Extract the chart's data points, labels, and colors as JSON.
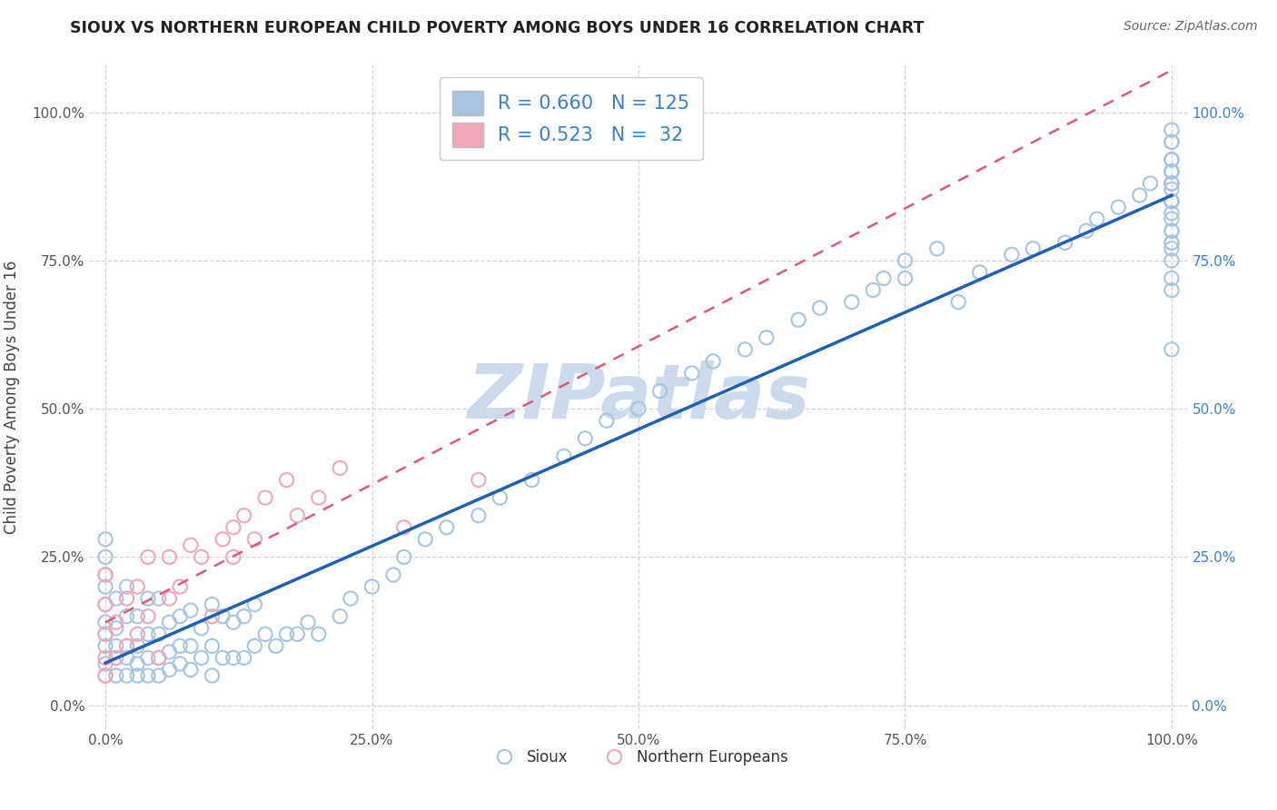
{
  "title": "SIOUX VS NORTHERN EUROPEAN CHILD POVERTY AMONG BOYS UNDER 16 CORRELATION CHART",
  "source": "Source: ZipAtlas.com",
  "ylabel": "Child Poverty Among Boys Under 16",
  "sioux_R": 0.66,
  "sioux_N": 125,
  "ne_R": 0.523,
  "ne_N": 32,
  "sioux_color": "#a8c4e0",
  "ne_color": "#f0a8b8",
  "sioux_line_color": "#2060b0",
  "ne_line_color": "#e05878",
  "watermark_color": "#ccdaec",
  "title_color": "#222222",
  "source_color": "#666666",
  "label_color_right": "#3a7fd5",
  "tick_color": "#555555",
  "grid_color": "#cccccc",
  "background": "#ffffff",
  "xticks": [
    0.0,
    0.25,
    0.5,
    0.75,
    1.0
  ],
  "yticks": [
    0.0,
    0.25,
    0.5,
    0.75,
    1.0
  ],
  "xlim": [
    -0.015,
    1.015
  ],
  "ylim": [
    -0.04,
    1.08
  ],
  "sioux_x": [
    0.0,
    0.0,
    0.0,
    0.0,
    0.0,
    0.0,
    0.0,
    0.0,
    0.0,
    0.0,
    0.01,
    0.01,
    0.01,
    0.01,
    0.01,
    0.02,
    0.02,
    0.02,
    0.02,
    0.02,
    0.03,
    0.03,
    0.03,
    0.03,
    0.04,
    0.04,
    0.04,
    0.04,
    0.05,
    0.05,
    0.05,
    0.05,
    0.06,
    0.06,
    0.06,
    0.07,
    0.07,
    0.07,
    0.08,
    0.08,
    0.08,
    0.09,
    0.09,
    0.1,
    0.1,
    0.1,
    0.11,
    0.11,
    0.12,
    0.12,
    0.13,
    0.13,
    0.14,
    0.14,
    0.15,
    0.16,
    0.17,
    0.18,
    0.19,
    0.2,
    0.22,
    0.23,
    0.25,
    0.27,
    0.28,
    0.3,
    0.32,
    0.35,
    0.37,
    0.4,
    0.43,
    0.45,
    0.47,
    0.5,
    0.52,
    0.55,
    0.57,
    0.6,
    0.62,
    0.65,
    0.67,
    0.7,
    0.72,
    0.73,
    0.75,
    0.75,
    0.78,
    0.8,
    0.82,
    0.85,
    0.87,
    0.9,
    0.92,
    0.93,
    0.95,
    0.97,
    0.98,
    1.0,
    1.0,
    1.0,
    1.0,
    1.0,
    1.0,
    1.0,
    1.0,
    1.0,
    1.0,
    1.0,
    1.0,
    1.0,
    1.0,
    1.0,
    1.0,
    1.0,
    1.0,
    1.0,
    1.0,
    1.0,
    1.0,
    1.0,
    1.0,
    1.0,
    1.0,
    1.0,
    1.0
  ],
  "sioux_y": [
    0.05,
    0.07,
    0.1,
    0.12,
    0.14,
    0.17,
    0.2,
    0.22,
    0.25,
    0.28,
    0.05,
    0.08,
    0.1,
    0.13,
    0.18,
    0.05,
    0.08,
    0.1,
    0.15,
    0.2,
    0.05,
    0.07,
    0.1,
    0.15,
    0.05,
    0.08,
    0.12,
    0.18,
    0.05,
    0.08,
    0.12,
    0.18,
    0.06,
    0.09,
    0.14,
    0.07,
    0.1,
    0.15,
    0.06,
    0.1,
    0.16,
    0.08,
    0.13,
    0.05,
    0.1,
    0.17,
    0.08,
    0.15,
    0.08,
    0.14,
    0.08,
    0.15,
    0.1,
    0.17,
    0.12,
    0.1,
    0.12,
    0.12,
    0.14,
    0.12,
    0.15,
    0.18,
    0.2,
    0.22,
    0.25,
    0.28,
    0.3,
    0.32,
    0.35,
    0.38,
    0.42,
    0.45,
    0.48,
    0.5,
    0.53,
    0.56,
    0.58,
    0.6,
    0.62,
    0.65,
    0.67,
    0.68,
    0.7,
    0.72,
    0.72,
    0.75,
    0.77,
    0.68,
    0.73,
    0.76,
    0.77,
    0.78,
    0.8,
    0.82,
    0.84,
    0.86,
    0.88,
    0.7,
    0.72,
    0.75,
    0.78,
    0.8,
    0.82,
    0.85,
    0.88,
    0.9,
    0.92,
    0.77,
    0.8,
    0.83,
    0.85,
    0.88,
    0.9,
    0.85,
    0.87,
    0.9,
    0.92,
    0.95,
    0.6,
    0.88,
    0.9,
    0.92,
    0.78,
    0.95,
    0.97
  ],
  "ne_x": [
    0.0,
    0.0,
    0.0,
    0.0,
    0.0,
    0.01,
    0.01,
    0.02,
    0.02,
    0.03,
    0.03,
    0.04,
    0.04,
    0.05,
    0.06,
    0.06,
    0.07,
    0.08,
    0.09,
    0.1,
    0.11,
    0.12,
    0.12,
    0.13,
    0.14,
    0.15,
    0.17,
    0.18,
    0.2,
    0.22,
    0.28,
    0.35
  ],
  "ne_y": [
    0.05,
    0.08,
    0.12,
    0.17,
    0.22,
    0.08,
    0.14,
    0.1,
    0.18,
    0.12,
    0.2,
    0.15,
    0.25,
    0.08,
    0.18,
    0.25,
    0.2,
    0.27,
    0.25,
    0.15,
    0.28,
    0.25,
    0.3,
    0.32,
    0.28,
    0.35,
    0.38,
    0.32,
    0.35,
    0.4,
    0.3,
    0.38
  ]
}
